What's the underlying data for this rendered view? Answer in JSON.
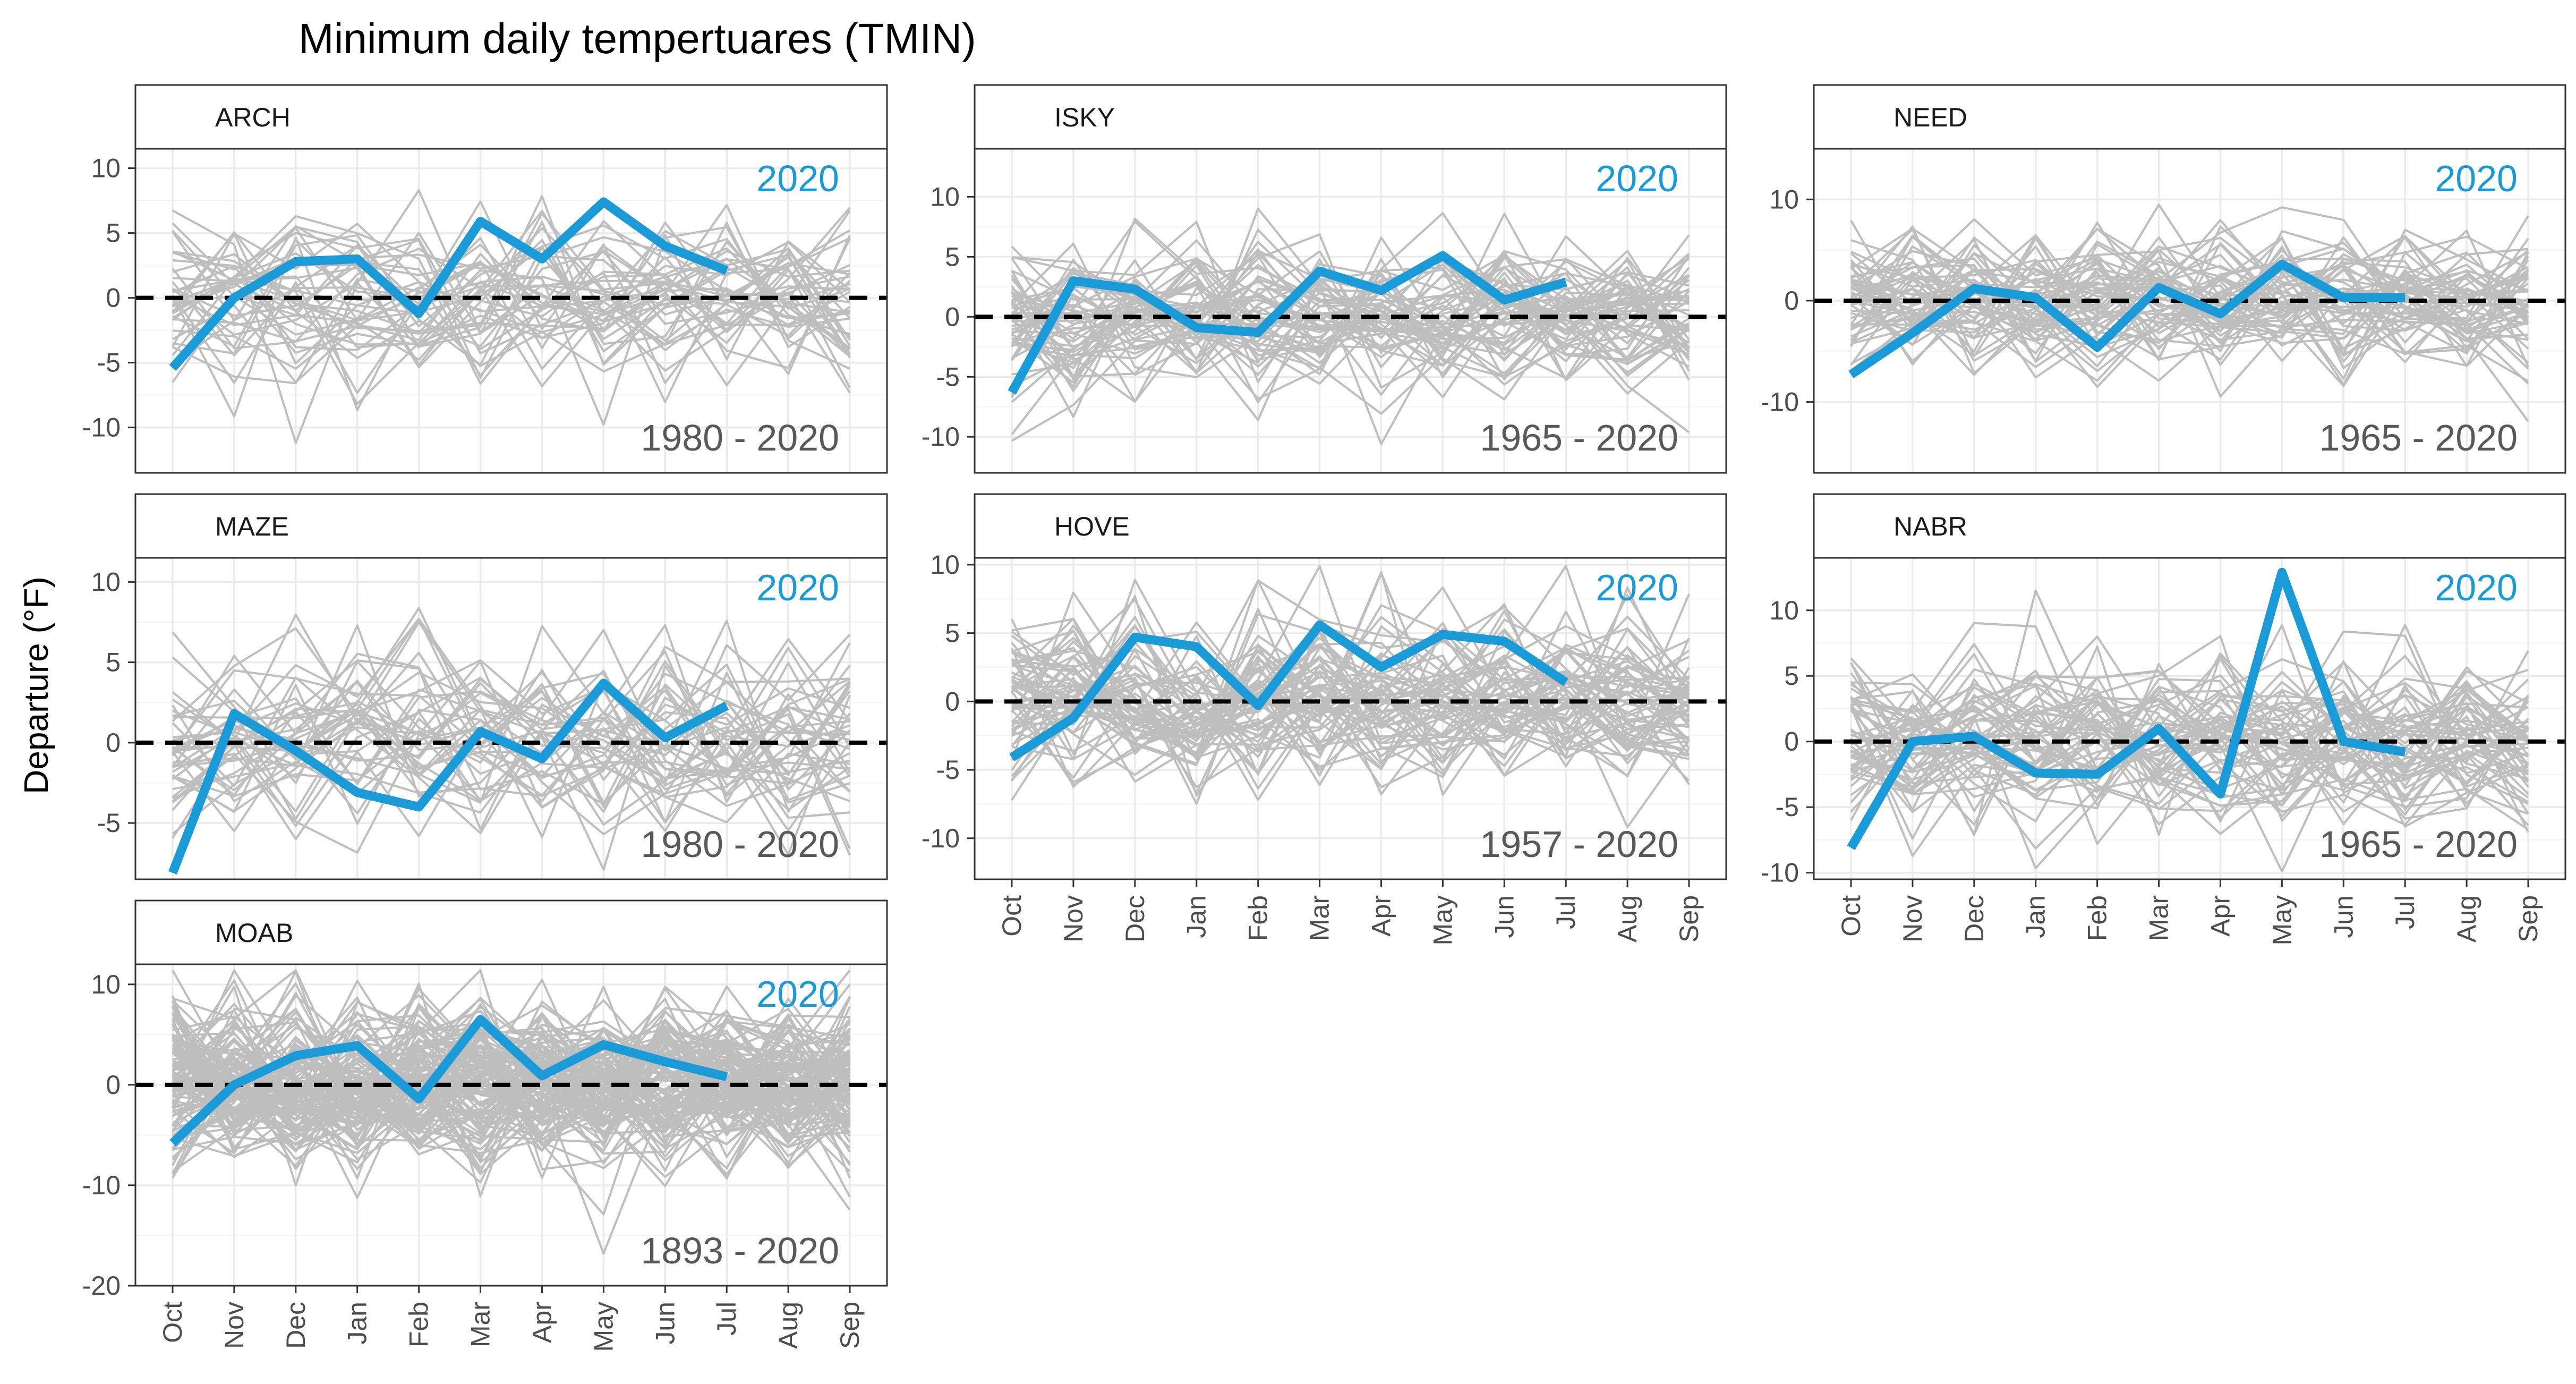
{
  "title": "Minimum daily tempertuares (TMIN)",
  "y_axis_label": "Departure (°F)",
  "highlight_year_label": "2020",
  "colors": {
    "highlight": "#1a9ad6",
    "history": "#bebebe",
    "zero_line": "#000000",
    "grid_major": "#ebebeb",
    "strip_fill": "#ffffff",
    "panel_border": "#333333"
  },
  "months": [
    "Oct",
    "Nov",
    "Dec",
    "Jan",
    "Feb",
    "Mar",
    "Apr",
    "May",
    "Jun",
    "Jul",
    "Aug",
    "Sep"
  ],
  "chart_data": [
    {
      "type": "line",
      "station": "ARCH",
      "period": "1980 - 2020",
      "ylim": [
        -13.5,
        11.5
      ],
      "yticks": [
        -10,
        -5,
        0,
        5,
        10
      ],
      "history_spread": 3.2,
      "history_count": 40,
      "series": [
        {
          "name": "2020",
          "values": [
            -5.4,
            0.0,
            2.8,
            3.0,
            -1.2,
            5.9,
            3.0,
            7.4,
            4.0,
            2.1
          ]
        }
      ]
    },
    {
      "type": "line",
      "station": "ISKY",
      "period": "1965 - 2020",
      "ylim": [
        -13,
        14
      ],
      "yticks": [
        -10,
        -5,
        0,
        5,
        10
      ],
      "history_spread": 3.2,
      "history_count": 55,
      "series": [
        {
          "name": "2020",
          "values": [
            -6.3,
            3.0,
            2.3,
            -0.9,
            -1.3,
            3.8,
            2.2,
            5.1,
            1.4,
            2.9
          ]
        }
      ]
    },
    {
      "type": "line",
      "station": "NEED",
      "period": "1965 - 2020",
      "ylim": [
        -17,
        15
      ],
      "yticks": [
        -10,
        0,
        10
      ],
      "history_spread": 3.6,
      "history_count": 55,
      "series": [
        {
          "name": "2020",
          "values": [
            -7.3,
            -3.2,
            1.2,
            0.3,
            -4.6,
            1.3,
            -1.3,
            3.6,
            0.3,
            0.3
          ]
        }
      ]
    },
    {
      "type": "line",
      "station": "MAZE",
      "period": "1980 - 2020",
      "ylim": [
        -8.5,
        11.5
      ],
      "yticks": [
        -5,
        0,
        5,
        10
      ],
      "history_spread": 3.0,
      "history_count": 40,
      "series": [
        {
          "name": "2020",
          "values": [
            -8.1,
            1.8,
            -0.5,
            -3.1,
            -4.0,
            0.7,
            -1.0,
            3.7,
            0.3,
            2.3
          ]
        }
      ]
    },
    {
      "type": "line",
      "station": "HOVE",
      "period": "1957 - 2020",
      "ylim": [
        -13,
        10.5
      ],
      "yticks": [
        -10,
        -5,
        0,
        5,
        10
      ],
      "history_spread": 3.2,
      "history_count": 62,
      "series": [
        {
          "name": "2020",
          "values": [
            -4.1,
            -1.2,
            4.7,
            4.0,
            -0.3,
            5.6,
            2.5,
            4.9,
            4.4,
            1.4
          ]
        }
      ]
    },
    {
      "type": "line",
      "station": "NABR",
      "period": "1965 - 2020",
      "ylim": [
        -10.5,
        14
      ],
      "yticks": [
        -10,
        -5,
        0,
        5,
        10
      ],
      "history_spread": 3.2,
      "history_count": 55,
      "series": [
        {
          "name": "2020",
          "values": [
            -8.1,
            0.0,
            0.4,
            -2.4,
            -2.5,
            1.0,
            -4.0,
            12.9,
            0.0,
            -0.8
          ]
        }
      ]
    },
    {
      "type": "line",
      "station": "MOAB",
      "period": "1893 - 2020",
      "ylim": [
        -20,
        12
      ],
      "yticks": [
        -20,
        -10,
        0,
        10
      ],
      "history_spread": 4.0,
      "history_count": 120,
      "series": [
        {
          "name": "2020",
          "values": [
            -5.8,
            0.0,
            2.9,
            3.9,
            -1.4,
            6.5,
            0.9,
            4.0,
            2.3,
            0.8
          ]
        }
      ]
    }
  ]
}
